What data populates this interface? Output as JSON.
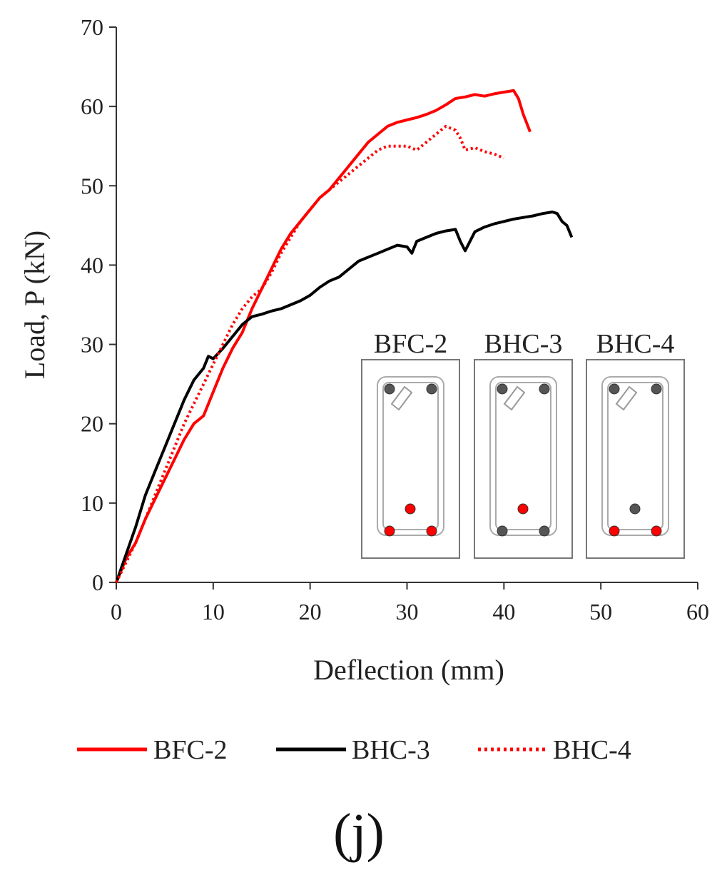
{
  "chart_data": {
    "type": "line",
    "title": "",
    "caption": "(j)",
    "xlabel": "Deflection (mm)",
    "ylabel": "Load, P (kN)",
    "xlim": [
      0,
      60
    ],
    "ylim": [
      0,
      70
    ],
    "xticks": [
      0,
      10,
      20,
      30,
      40,
      50,
      60
    ],
    "yticks": [
      0,
      10,
      20,
      30,
      40,
      50,
      60,
      70
    ],
    "grid": false,
    "legend_position": "bottom",
    "series": [
      {
        "name": "BFC-2",
        "color": "#ff0000",
        "style": "solid",
        "x": [
          0,
          1,
          2,
          3,
          4,
          5,
          6,
          7,
          8,
          9,
          10,
          11,
          12,
          13,
          14,
          15,
          16,
          17,
          18,
          19,
          20,
          21,
          22,
          23,
          24,
          25,
          26,
          27,
          28,
          29,
          30,
          31,
          32,
          33,
          34,
          35,
          36,
          37,
          38,
          39,
          40,
          41,
          41.5,
          42,
          42.7
        ],
        "y": [
          0,
          3,
          5,
          8,
          10.5,
          13,
          15.5,
          18,
          20,
          21,
          24,
          27,
          29.5,
          31.5,
          34.5,
          37,
          39.5,
          42,
          44,
          45.5,
          47,
          48.5,
          49.5,
          51,
          52.5,
          54,
          55.5,
          56.5,
          57.5,
          58,
          58.3,
          58.6,
          59,
          59.5,
          60.2,
          61,
          61.2,
          61.5,
          61.3,
          61.6,
          61.8,
          62,
          61,
          59,
          56.8
        ]
      },
      {
        "name": "BHC-3",
        "color": "#000000",
        "style": "solid",
        "x": [
          0,
          1,
          2,
          3,
          4,
          5,
          6,
          7,
          8,
          9,
          9.5,
          10,
          11,
          12,
          13,
          14,
          15,
          16,
          17,
          18,
          19,
          20,
          21,
          22,
          23,
          24,
          25,
          26,
          27,
          28,
          29,
          30,
          30.5,
          31,
          32,
          33,
          34,
          35,
          35.5,
          36,
          37,
          38,
          39,
          40,
          41,
          42,
          43,
          44,
          45,
          45.5,
          46,
          46.5,
          47
        ],
        "y": [
          0,
          3.5,
          7,
          11,
          14,
          17,
          20,
          23,
          25.5,
          27,
          28.5,
          28.2,
          29.5,
          31,
          32.5,
          33.5,
          33.8,
          34.2,
          34.5,
          35,
          35.5,
          36.2,
          37.2,
          38,
          38.5,
          39.5,
          40.5,
          41,
          41.5,
          42,
          42.5,
          42.3,
          41.5,
          43,
          43.5,
          44,
          44.3,
          44.5,
          43,
          41.8,
          44.2,
          44.8,
          45.2,
          45.5,
          45.8,
          46,
          46.2,
          46.5,
          46.7,
          46.5,
          45.5,
          45,
          43.5
        ]
      },
      {
        "name": "BHC-4",
        "color": "#ff0000",
        "style": "dotted",
        "x": [
          0,
          1,
          2,
          3,
          4,
          5,
          6,
          7,
          8,
          9,
          10,
          11,
          12,
          13,
          14,
          15,
          16,
          17,
          18,
          19,
          20,
          21,
          22,
          23,
          24,
          25,
          26,
          27,
          28,
          29,
          30,
          31,
          32,
          33,
          34,
          35,
          35.5,
          36,
          37,
          38,
          39,
          40
        ],
        "y": [
          0,
          2.5,
          5,
          8,
          11,
          14,
          17,
          20,
          22.5,
          25,
          27.5,
          30,
          32.5,
          34.5,
          36,
          37,
          39,
          41.5,
          43.5,
          45.5,
          47,
          48.5,
          49.5,
          50.5,
          51.5,
          52.5,
          53.5,
          54.5,
          55,
          55,
          55,
          54.5,
          55.5,
          56.5,
          57.5,
          57,
          56,
          54.5,
          54.8,
          54.3,
          54,
          53.5
        ]
      }
    ],
    "inset": {
      "sections": [
        {
          "label": "BFC-2",
          "bars": [
            {
              "pos": "top-left",
              "color": "#555555"
            },
            {
              "pos": "top-right",
              "color": "#555555"
            },
            {
              "pos": "mid",
              "color": "#ff0000"
            },
            {
              "pos": "bottom-left",
              "color": "#ff0000"
            },
            {
              "pos": "bottom-right",
              "color": "#ff0000"
            }
          ],
          "hook": true
        },
        {
          "label": "BHC-3",
          "bars": [
            {
              "pos": "top-left",
              "color": "#555555"
            },
            {
              "pos": "top-right",
              "color": "#555555"
            },
            {
              "pos": "mid",
              "color": "#ff0000"
            },
            {
              "pos": "bottom-left",
              "color": "#555555"
            },
            {
              "pos": "bottom-right",
              "color": "#555555"
            }
          ],
          "hook": true
        },
        {
          "label": "BHC-4",
          "bars": [
            {
              "pos": "top-left",
              "color": "#555555"
            },
            {
              "pos": "top-right",
              "color": "#555555"
            },
            {
              "pos": "mid",
              "color": "#555555"
            },
            {
              "pos": "bottom-left",
              "color": "#ff0000"
            },
            {
              "pos": "bottom-right",
              "color": "#ff0000"
            }
          ],
          "hook": true
        }
      ]
    }
  }
}
